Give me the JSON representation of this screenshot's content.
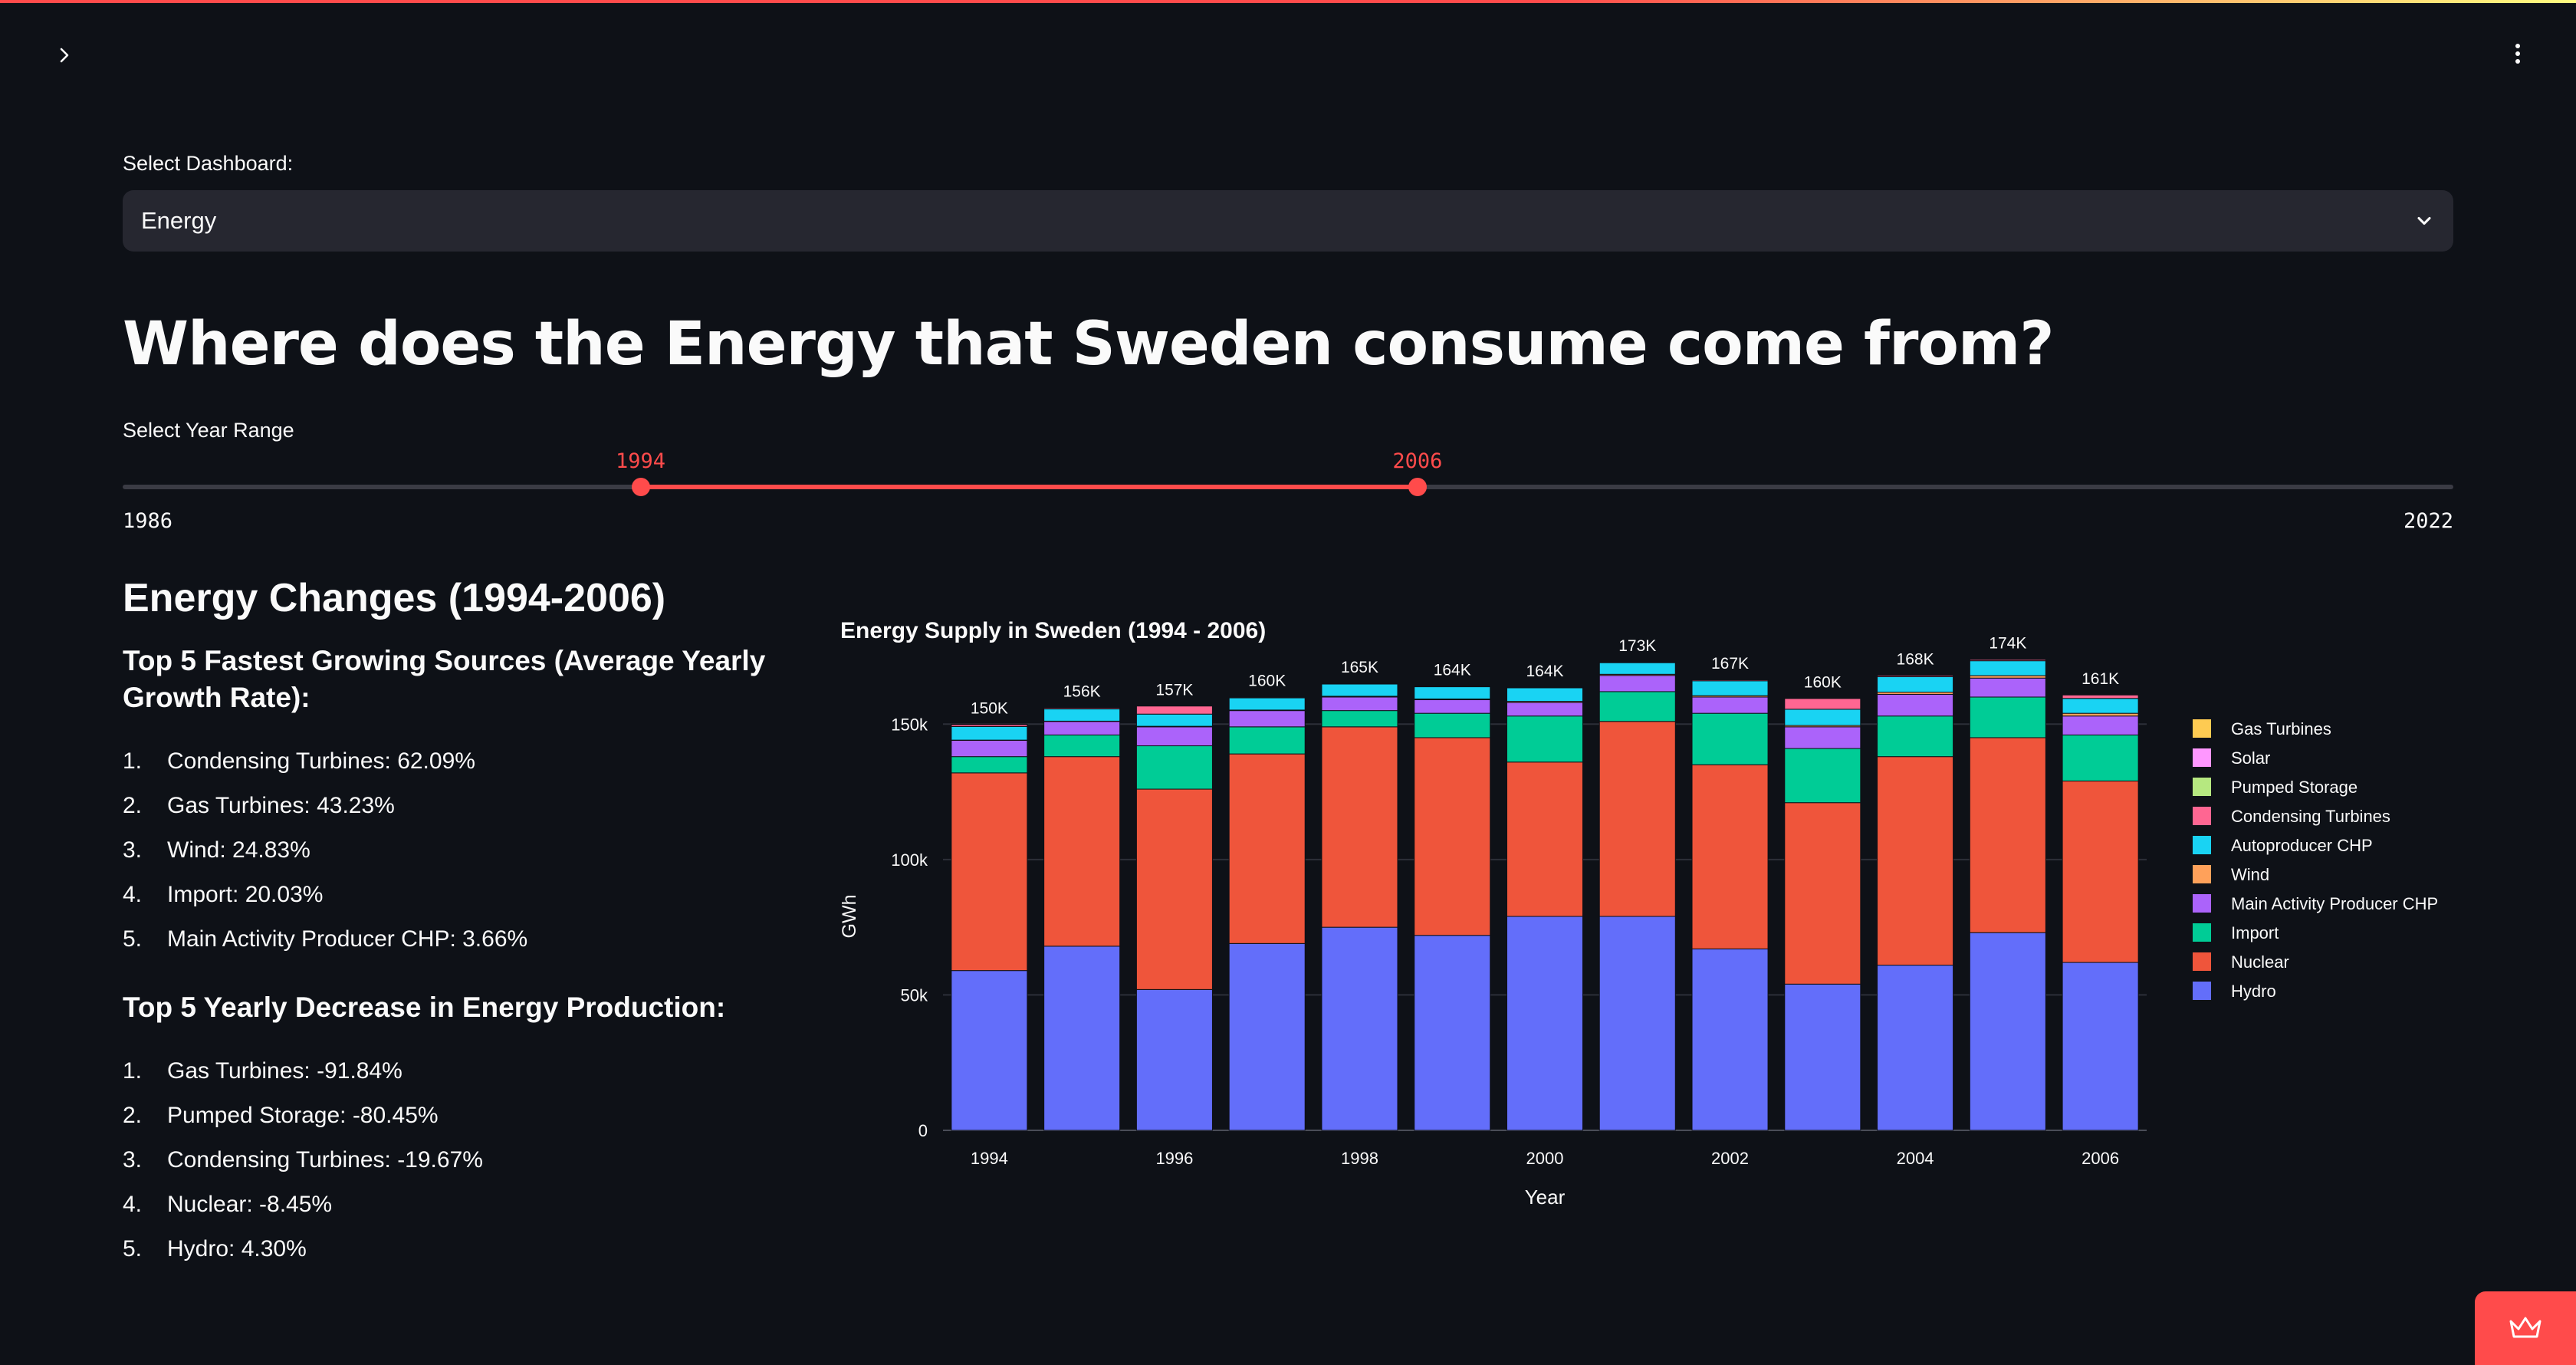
{
  "dashboard": {
    "label": "Select Dashboard:",
    "selected": "Energy"
  },
  "page_title": "Where does the Energy that Sweden consume come from?",
  "year_range": {
    "label": "Select Year Range",
    "min": 1986,
    "max": 2022,
    "start": 1994,
    "end": 2006,
    "min_label": "1986",
    "max_label": "2022",
    "start_label": "1994",
    "end_label": "2006"
  },
  "changes": {
    "title": "Energy Changes (1994-2006)",
    "growth_title": "Top 5 Fastest Growing Sources (Average Yearly Growth Rate):",
    "growth": [
      {
        "n": "1.",
        "text": "Condensing Turbines: 62.09%"
      },
      {
        "n": "2.",
        "text": "Gas Turbines: 43.23%"
      },
      {
        "n": "3.",
        "text": "Wind: 24.83%"
      },
      {
        "n": "4.",
        "text": "Import: 20.03%"
      },
      {
        "n": "5.",
        "text": "Main Activity Producer CHP: 3.66%"
      }
    ],
    "decrease_title": "Top 5 Yearly Decrease in Energy Production:",
    "decrease": [
      {
        "n": "1.",
        "text": "Gas Turbines: -91.84%"
      },
      {
        "n": "2.",
        "text": "Pumped Storage: -80.45%"
      },
      {
        "n": "3.",
        "text": "Condensing Turbines: -19.67%"
      },
      {
        "n": "4.",
        "text": "Nuclear: -8.45%"
      },
      {
        "n": "5.",
        "text": "Hydro: 4.30%"
      }
    ]
  },
  "chart_data": {
    "type": "bar",
    "stacked": true,
    "title": "Energy Supply in Sweden (1994 - 2006)",
    "xlabel": "Year",
    "ylabel": "GWh",
    "ylim": [
      0,
      175000
    ],
    "yticks": [
      0,
      50000,
      100000,
      150000
    ],
    "ytick_labels": [
      "0",
      "50k",
      "100k",
      "150k"
    ],
    "xtick_labels": [
      "1994",
      "1996",
      "1998",
      "2000",
      "2002",
      "2004",
      "2006"
    ],
    "categories": [
      "1994",
      "1995",
      "1996",
      "1997",
      "1998",
      "1999",
      "2000",
      "2001",
      "2002",
      "2003",
      "2004",
      "2005",
      "2006"
    ],
    "totals_labels": [
      "150K",
      "156K",
      "157K",
      "160K",
      "165K",
      "164K",
      "164K",
      "173K",
      "167K",
      "160K",
      "168K",
      "174K",
      "161K"
    ],
    "legend_position": "right",
    "series": [
      {
        "name": "Hydro",
        "color": "#636efa",
        "values": [
          59000,
          68000,
          52000,
          69000,
          75000,
          72000,
          79000,
          79000,
          67000,
          54000,
          61000,
          73000,
          62000
        ]
      },
      {
        "name": "Nuclear",
        "color": "#ef553b",
        "values": [
          73000,
          70000,
          74000,
          70000,
          74000,
          73000,
          57000,
          72000,
          68000,
          67000,
          77000,
          72000,
          67000
        ]
      },
      {
        "name": "Import",
        "color": "#00cc96",
        "values": [
          6000,
          8000,
          16000,
          10000,
          6000,
          9000,
          17000,
          11000,
          19000,
          20000,
          15000,
          15000,
          17000
        ]
      },
      {
        "name": "Main Activity Producer CHP",
        "color": "#ab63fa",
        "values": [
          6000,
          5000,
          7000,
          6000,
          5000,
          5000,
          5000,
          6000,
          6000,
          8000,
          8000,
          7000,
          7000
        ]
      },
      {
        "name": "Wind",
        "color": "#ffa15a",
        "values": [
          100,
          100,
          200,
          200,
          300,
          300,
          400,
          400,
          500,
          500,
          800,
          900,
          1000
        ]
      },
      {
        "name": "Autoproducer CHP",
        "color": "#19d3f3",
        "values": [
          5000,
          4500,
          4500,
          4500,
          4500,
          4500,
          5000,
          4300,
          5500,
          6000,
          5700,
          5500,
          5500
        ]
      },
      {
        "name": "Condensing Turbines",
        "color": "#ff6692",
        "values": [
          700,
          400,
          3000,
          300,
          200,
          200,
          200,
          200,
          400,
          4000,
          500,
          500,
          1300
        ]
      },
      {
        "name": "Pumped Storage",
        "color": "#b6e880",
        "values": [
          100,
          50,
          50,
          50,
          50,
          50,
          50,
          50,
          50,
          50,
          20,
          20,
          20
        ]
      },
      {
        "name": "Solar",
        "color": "#ff97ff",
        "values": [
          0,
          0,
          0,
          0,
          0,
          0,
          0,
          0,
          0,
          0,
          0,
          0,
          0
        ]
      },
      {
        "name": "Gas Turbines",
        "color": "#fecb52",
        "values": [
          100,
          50,
          50,
          50,
          50,
          50,
          50,
          50,
          50,
          50,
          50,
          20,
          10
        ]
      }
    ]
  },
  "icons": {
    "sidebar_toggle": "chevron-right-icon",
    "menu": "vertical-dots-icon",
    "select_arrow": "chevron-down-icon",
    "fab": "crown-icon"
  }
}
